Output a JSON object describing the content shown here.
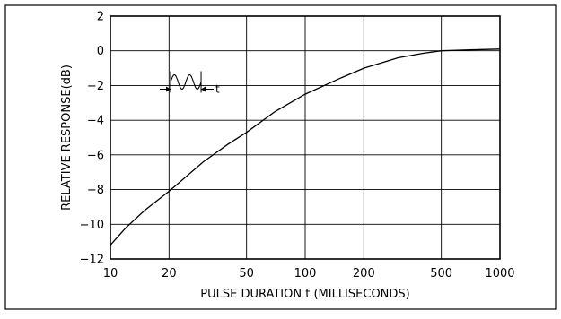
{
  "chart_data": {
    "type": "line",
    "title": "",
    "xlabel": "PULSE DURATION  t  (MILLISECONDS)",
    "ylabel": "RELATIVE  RESPONSE(dB)",
    "x_scale": "log",
    "xlim": [
      10,
      1000
    ],
    "ylim": [
      -12,
      2
    ],
    "grid": true,
    "x_ticks": [
      10,
      20,
      50,
      100,
      200,
      500,
      1000
    ],
    "x_tick_labels": [
      "10",
      "20",
      "50",
      "100",
      "200",
      "500",
      "1000"
    ],
    "y_ticks": [
      2,
      0,
      -2,
      -4,
      -6,
      -8,
      -10,
      -12
    ],
    "y_tick_labels": [
      "2",
      "0",
      "−2",
      "−4",
      "−6",
      "−8",
      "−10",
      "−12"
    ],
    "series": [
      {
        "x": [
          10,
          12,
          15,
          20,
          30,
          40,
          50,
          70,
          100,
          150,
          200,
          300,
          400,
          500,
          700,
          1000
        ],
        "y": [
          -11.2,
          -10.2,
          -9.2,
          -8.1,
          -6.4,
          -5.4,
          -4.7,
          -3.5,
          -2.5,
          -1.6,
          -1.0,
          -0.4,
          -0.15,
          0.0,
          0.05,
          0.1
        ]
      }
    ],
    "annotations": [
      {
        "text": "t",
        "x": 28,
        "y": -1.9,
        "glyph": "tone-burst-icon"
      }
    ]
  }
}
